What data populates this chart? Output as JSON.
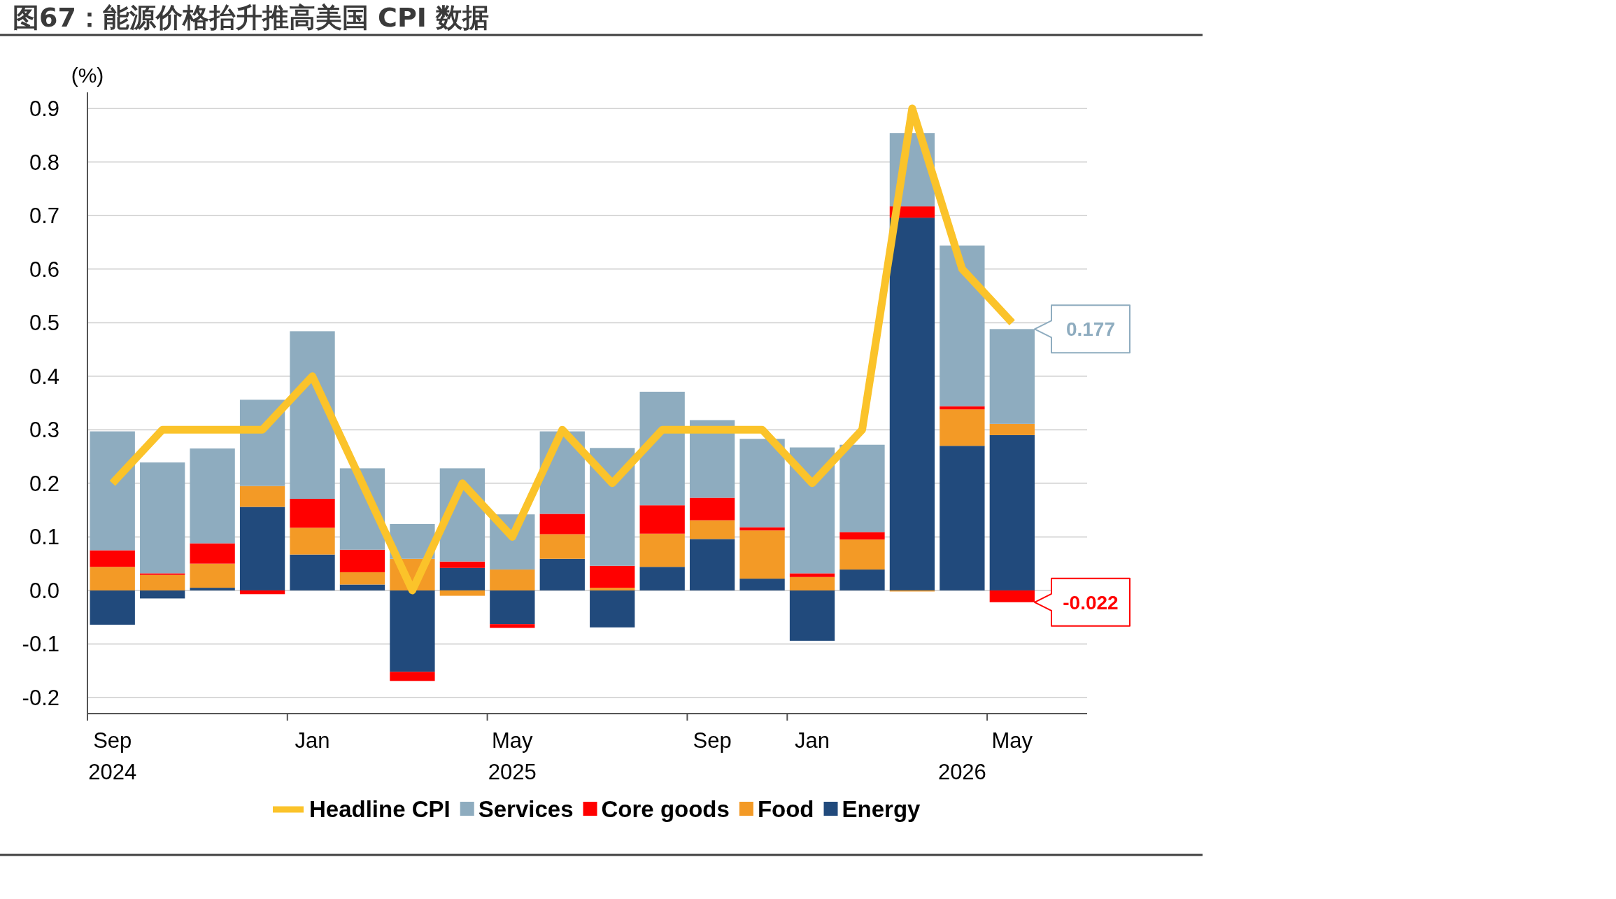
{
  "chart_data": {
    "type": "bar",
    "title": "图67：能源价格抬升推高美国 CPI 数据",
    "ylabel": "(%)",
    "stacked": true,
    "annotations": [
      {
        "text": "0.177",
        "x": "May",
        "y": 0.488
      },
      {
        "text": "-0.022",
        "x": "May",
        "y": -0.022
      }
    ],
    "grid": "y",
    "legend": "bottom",
    "categories": [
      "Sep\n2024",
      null,
      null,
      null,
      "Jan",
      null,
      null,
      null,
      "May\n2025",
      null,
      null,
      null,
      "Sep",
      null,
      "Jan",
      null,
      null,
      "\n2026",
      "May"
    ],
    "ylim": [
      -0.23,
      0.93
    ],
    "yticks": [
      -0.2,
      -0.1,
      {
        "value": 0,
        "label": "0.0"
      },
      0.1,
      0.2,
      0.3,
      0.4,
      0.5,
      0.6,
      0.7,
      0.8,
      0.9
    ],
    "series": [
      {
        "name": "Headline CPI",
        "type": "line",
        "color": "#fbc32a",
        "values": [
          0.2,
          0.3,
          0.3,
          0.3,
          0.4,
          0.2,
          0.0,
          0.2,
          0.1,
          0.3,
          0.2,
          0.3,
          0.3,
          0.3,
          0.2,
          0.3,
          0.9,
          0.6,
          0.5
        ]
      },
      {
        "name": "Energy",
        "color": "#214a7c",
        "values": [
          -0.064,
          -0.015,
          0.005,
          0.156,
          0.067,
          0.011,
          -0.152,
          0.042,
          -0.063,
          0.059,
          -0.069,
          0.044,
          0.096,
          0.022,
          -0.094,
          0.039,
          0.696,
          0.27,
          0.29
        ]
      },
      {
        "name": "Food",
        "color": "#f39a26",
        "values": [
          0.044,
          0.029,
          0.045,
          0.039,
          0.05,
          0.023,
          0.059,
          -0.01,
          0.039,
          0.046,
          0.005,
          0.062,
          0.035,
          0.09,
          0.025,
          0.056,
          -0.002,
          0.068,
          0.021
        ]
      },
      {
        "name": "Core goods",
        "color": "#ff0000",
        "values": [
          0.031,
          0.003,
          0.038,
          -0.007,
          0.054,
          0.042,
          -0.017,
          0.012,
          -0.007,
          0.038,
          0.041,
          0.053,
          0.042,
          0.006,
          0.007,
          0.014,
          0.021,
          0.006,
          -0.022
        ]
      },
      {
        "name": "Services",
        "color": "#8eacbf",
        "values": [
          0.222,
          0.207,
          0.177,
          0.161,
          0.313,
          0.152,
          0.065,
          0.174,
          0.103,
          0.154,
          0.22,
          0.212,
          0.145,
          0.165,
          0.235,
          0.163,
          0.137,
          0.3,
          0.177
        ]
      }
    ]
  }
}
